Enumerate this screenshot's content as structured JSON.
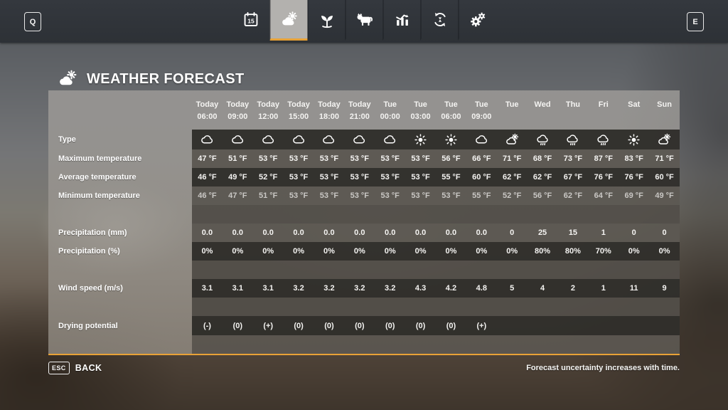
{
  "topbar": {
    "left_key": "Q",
    "right_key": "E",
    "tabs": [
      {
        "id": "calendar",
        "icon": "calendar-icon",
        "badge": "15",
        "active": false
      },
      {
        "id": "weather",
        "icon": "weather-icon",
        "active": true
      },
      {
        "id": "plants",
        "icon": "seedling-icon",
        "active": false
      },
      {
        "id": "animals",
        "icon": "cow-icon",
        "active": false
      },
      {
        "id": "statistics",
        "icon": "chart-icon",
        "active": false
      },
      {
        "id": "cycles",
        "icon": "cycle-icon",
        "active": false
      },
      {
        "id": "settings",
        "icon": "gears-icon",
        "active": false
      }
    ]
  },
  "page": {
    "title": "WEATHER FORECAST"
  },
  "table": {
    "columns": [
      {
        "day": "Today",
        "time": "06:00"
      },
      {
        "day": "Today",
        "time": "09:00"
      },
      {
        "day": "Today",
        "time": "12:00"
      },
      {
        "day": "Today",
        "time": "15:00"
      },
      {
        "day": "Today",
        "time": "18:00"
      },
      {
        "day": "Today",
        "time": "21:00"
      },
      {
        "day": "Tue",
        "time": "00:00"
      },
      {
        "day": "Tue",
        "time": "03:00"
      },
      {
        "day": "Tue",
        "time": "06:00"
      },
      {
        "day": "Tue",
        "time": "09:00"
      },
      {
        "day": "Tue",
        "time": ""
      },
      {
        "day": "Wed",
        "time": ""
      },
      {
        "day": "Thu",
        "time": ""
      },
      {
        "day": "Fri",
        "time": ""
      },
      {
        "day": "Sat",
        "time": ""
      },
      {
        "day": "Sun",
        "time": ""
      }
    ],
    "rows": [
      {
        "key": "type",
        "label": "Type",
        "kind": "icons",
        "band": "dark",
        "icons": [
          "cloudy",
          "cloudy",
          "cloudy",
          "cloudy",
          "cloudy",
          "cloudy",
          "cloudy",
          "sunny",
          "sunny",
          "cloudy",
          "partly-cloudy",
          "rainy",
          "rainy",
          "rainy",
          "sunny",
          "partly-cloudy"
        ]
      },
      {
        "key": "max",
        "label": "Maximum temperature",
        "kind": "text",
        "band": "med",
        "values": [
          "47 °F",
          "51 °F",
          "53 °F",
          "53 °F",
          "53 °F",
          "53 °F",
          "53 °F",
          "53 °F",
          "56 °F",
          "66 °F",
          "71 °F",
          "68 °F",
          "73 °F",
          "87 °F",
          "83 °F",
          "71 °F"
        ]
      },
      {
        "key": "avg",
        "label": "Average temperature",
        "kind": "text",
        "band": "dark",
        "values": [
          "46 °F",
          "49 °F",
          "52 °F",
          "53 °F",
          "53 °F",
          "53 °F",
          "53 °F",
          "53 °F",
          "55 °F",
          "60 °F",
          "62 °F",
          "62 °F",
          "67 °F",
          "76 °F",
          "76 °F",
          "60 °F"
        ]
      },
      {
        "key": "min",
        "label": "Minimum temperature",
        "kind": "text",
        "band": "med",
        "dim": true,
        "values": [
          "46 °F",
          "47 °F",
          "51 °F",
          "53 °F",
          "53 °F",
          "53 °F",
          "53 °F",
          "53 °F",
          "53 °F",
          "55 °F",
          "52 °F",
          "56 °F",
          "62 °F",
          "64 °F",
          "69 °F",
          "49 °F"
        ]
      },
      {
        "kind": "sep"
      },
      {
        "key": "precip_mm",
        "label": "Precipitation (mm)",
        "kind": "text",
        "band": "med",
        "values": [
          "0.0",
          "0.0",
          "0.0",
          "0.0",
          "0.0",
          "0.0",
          "0.0",
          "0.0",
          "0.0",
          "0.0",
          "0",
          "25",
          "15",
          "1",
          "0",
          "0"
        ]
      },
      {
        "key": "precip_pct",
        "label": "Precipitation (%)",
        "kind": "text",
        "band": "dark",
        "values": [
          "0%",
          "0%",
          "0%",
          "0%",
          "0%",
          "0%",
          "0%",
          "0%",
          "0%",
          "0%",
          "0%",
          "80%",
          "80%",
          "70%",
          "0%",
          "0%"
        ]
      },
      {
        "kind": "sep"
      },
      {
        "key": "wind",
        "label": "Wind speed (m/s)",
        "kind": "text",
        "band": "dark",
        "values": [
          "3.1",
          "3.1",
          "3.1",
          "3.2",
          "3.2",
          "3.2",
          "3.2",
          "4.3",
          "4.2",
          "4.8",
          "5",
          "4",
          "2",
          "1",
          "11",
          "9"
        ]
      },
      {
        "kind": "sep"
      },
      {
        "key": "drying",
        "label": "Drying potential",
        "kind": "text",
        "band": "dark",
        "values": [
          "(-)",
          "(0)",
          "(+)",
          "(0)",
          "(0)",
          "(0)",
          "(0)",
          "(0)",
          "(0)",
          "(+)",
          "",
          "",
          "",
          "",
          "",
          ""
        ]
      },
      {
        "kind": "filler"
      }
    ]
  },
  "footer": {
    "esc_key": "ESC",
    "back_label": "BACK",
    "note": "Forecast uncertainty increases with time."
  },
  "colors": {
    "accent": "#e8a237",
    "topbar": "#31353a"
  }
}
